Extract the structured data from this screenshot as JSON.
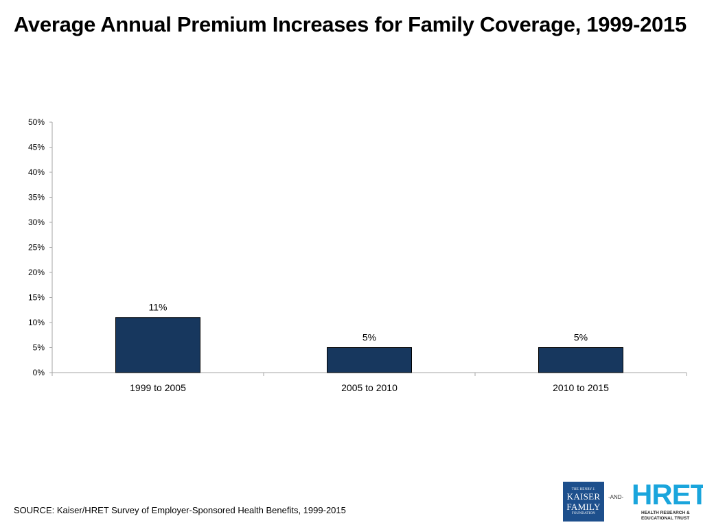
{
  "title": "Average Annual Premium Increases for Family Coverage, 1999-2015",
  "source": "SOURCE:  Kaiser/HRET Survey of Employer-Sponsored Health Benefits, 1999-2015",
  "colors": {
    "bar": "#17375e",
    "bar_stroke": "#000000",
    "axis": "#a6a6a6"
  },
  "logos": {
    "kff_line1": "THE HENRY J.",
    "kff_line2": "KAISER",
    "kff_line3": "FAMILY",
    "kff_line4": "FOUNDATION",
    "and": "-AND-",
    "hret": "HRET",
    "hret_line1": "HEALTH RESEARCH &",
    "hret_line2": "EDUCATIONAL TRUST"
  },
  "chart_data": {
    "type": "bar",
    "title": "Average Annual Premium Increases for Family Coverage, 1999-2015",
    "categories": [
      "1999 to 2005",
      "2005 to 2010",
      "2010 to 2015"
    ],
    "values": [
      11,
      5,
      5
    ],
    "data_labels": [
      "11%",
      "5%",
      "5%"
    ],
    "yticks": [
      "0%",
      "5%",
      "10%",
      "15%",
      "20%",
      "25%",
      "30%",
      "35%",
      "40%",
      "45%",
      "50%"
    ],
    "ylim": [
      0,
      50
    ],
    "xlabel": "",
    "ylabel": "",
    "grid": false,
    "legend": "none"
  }
}
